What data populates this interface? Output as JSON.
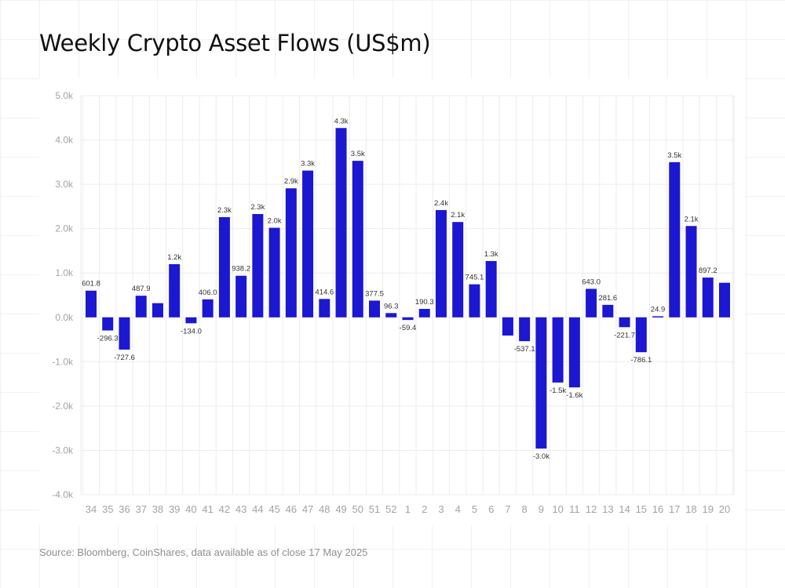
{
  "colors": {
    "bar": "#1c17d0",
    "grid": "#ececec",
    "axis_text": "#a3a3a3",
    "label_text": "#333333"
  },
  "chart_data": {
    "type": "bar",
    "title": "Weekly Crypto Asset Flows (US$m)",
    "xlabel": "",
    "ylabel": "",
    "ylim": [
      -4000,
      5000
    ],
    "yticks": [
      5000,
      4000,
      3000,
      2000,
      1000,
      0,
      -1000,
      -2000,
      -3000,
      -4000
    ],
    "ytick_labels": [
      "5.0k",
      "4.0k",
      "3.0k",
      "2.0k",
      "1.0k",
      "0.0k",
      "-1.0k",
      "-2.0k",
      "-3.0k",
      "-4.0k"
    ],
    "grid": true,
    "categories": [
      "34",
      "35",
      "36",
      "37",
      "38",
      "39",
      "40",
      "41",
      "42",
      "43",
      "44",
      "45",
      "46",
      "47",
      "48",
      "49",
      "50",
      "51",
      "52",
      "1",
      "2",
      "3",
      "4",
      "5",
      "6",
      "7",
      "8",
      "9",
      "10",
      "11",
      "12",
      "13",
      "14",
      "15",
      "16",
      "17",
      "18",
      "19",
      "20"
    ],
    "values": [
      601.8,
      -296.3,
      -727.6,
      487.9,
      320,
      1200,
      -134.0,
      406.0,
      2260,
      938.2,
      2330,
      2020,
      2910,
      3310,
      414.6,
      4270,
      3530,
      377.5,
      96.3,
      -59.4,
      190.3,
      2420,
      2150,
      745.1,
      1270,
      -410,
      -537.1,
      -2960,
      -1470,
      -1580,
      643.0,
      281.6,
      -221.7,
      -786.1,
      24.9,
      3500,
      2060,
      897.2,
      780
    ],
    "data_labels": [
      "601.8",
      "-296.3",
      "-727.6",
      "487.9",
      "",
      "1.2k",
      "-134.0",
      "406.0",
      "2.3k",
      "938.2",
      "2.3k",
      "2.0k",
      "2.9k",
      "3.3k",
      "414.6",
      "4.3k",
      "3.5k",
      "377.5",
      "96.3",
      "-59.4",
      "190.3",
      "2.4k",
      "2.1k",
      "745.1",
      "1.3k",
      "",
      "-537.1",
      "-3.0k",
      "-1.5k",
      "-1.6k",
      "643.0",
      "281.6",
      "-221.7",
      "-786.1",
      "24.9",
      "3.5k",
      "2.1k",
      "897.2",
      ""
    ]
  },
  "footer": {
    "source": "Source: Bloomberg, CoinShares, data available as of close 17 May 2025"
  }
}
